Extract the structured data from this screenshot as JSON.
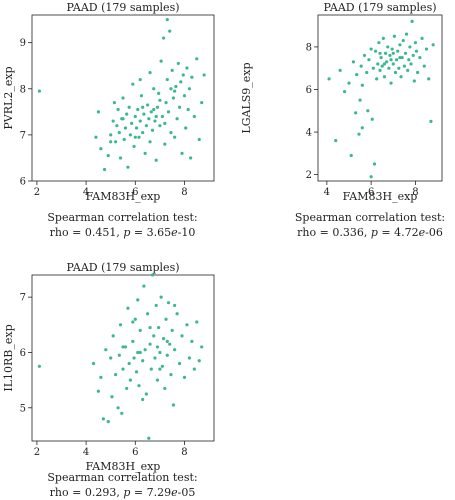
{
  "chart_data": [
    {
      "type": "scatter",
      "title": "PAAD (179 samples)",
      "xlabel": "FAM83H_exp",
      "ylabel": "PVRL2_exp",
      "xlim": [
        1.8,
        9.2
      ],
      "ylim": [
        6.0,
        9.6
      ],
      "xticks": [
        2,
        4,
        6,
        8
      ],
      "yticks": [
        6,
        7,
        8,
        9
      ],
      "point_color": "#3cb88c",
      "stat_title": "Spearman correlation test:",
      "stat_rho": "rho = 0.451,",
      "stat_p_label": "p",
      "stat_p_value": "= 3.65e-10",
      "stat_p_mantissa": "3.65",
      "stat_p_e": "e",
      "stat_p_exp": "-10",
      "points": [
        [
          2.1,
          7.95
        ],
        [
          4.4,
          6.95
        ],
        [
          4.6,
          6.7
        ],
        [
          4.75,
          6.25
        ],
        [
          4.5,
          7.5
        ],
        [
          4.9,
          6.55
        ],
        [
          5.0,
          7.0
        ],
        [
          5.1,
          7.3
        ],
        [
          5.2,
          6.85
        ],
        [
          5.25,
          7.2
        ],
        [
          5.3,
          7.55
        ],
        [
          5.35,
          7.05
        ],
        [
          5.4,
          6.5
        ],
        [
          5.45,
          7.35
        ],
        [
          5.5,
          7.8
        ],
        [
          5.55,
          6.9
        ],
        [
          5.6,
          7.15
        ],
        [
          5.65,
          7.45
        ],
        [
          5.7,
          6.3
        ],
        [
          5.75,
          7.6
        ],
        [
          5.8,
          7.0
        ],
        [
          5.85,
          7.25
        ],
        [
          5.9,
          8.1
        ],
        [
          5.95,
          6.75
        ],
        [
          6.0,
          7.4
        ],
        [
          6.05,
          7.15
        ],
        [
          6.1,
          7.55
        ],
        [
          6.15,
          6.95
        ],
        [
          6.2,
          7.3
        ],
        [
          6.25,
          7.85
        ],
        [
          6.3,
          7.05
        ],
        [
          6.35,
          7.45
        ],
        [
          6.4,
          6.6
        ],
        [
          6.45,
          7.2
        ],
        [
          6.5,
          7.65
        ],
        [
          6.55,
          7.35
        ],
        [
          6.6,
          6.85
        ],
        [
          6.65,
          7.5
        ],
        [
          6.7,
          7.1
        ],
        [
          6.75,
          8.0
        ],
        [
          6.8,
          7.3
        ],
        [
          6.85,
          6.45
        ],
        [
          6.9,
          7.6
        ],
        [
          6.95,
          7.9
        ],
        [
          7.0,
          7.2
        ],
        [
          7.05,
          8.6
        ],
        [
          7.1,
          7.4
        ],
        [
          7.15,
          9.1
        ],
        [
          7.2,
          6.8
        ],
        [
          7.25,
          7.7
        ],
        [
          7.3,
          8.2
        ],
        [
          7.35,
          7.5
        ],
        [
          7.4,
          9.25
        ],
        [
          7.45,
          7.05
        ],
        [
          7.5,
          8.4
        ],
        [
          7.55,
          7.8
        ],
        [
          7.6,
          6.95
        ],
        [
          7.65,
          8.05
        ],
        [
          7.7,
          7.35
        ],
        [
          7.75,
          8.55
        ],
        [
          7.8,
          7.6
        ],
        [
          7.85,
          8.15
        ],
        [
          7.9,
          6.6
        ],
        [
          7.95,
          8.3
        ],
        [
          8.0,
          7.85
        ],
        [
          8.05,
          7.15
        ],
        [
          8.1,
          8.45
        ],
        [
          8.15,
          7.55
        ],
        [
          8.2,
          8.0
        ],
        [
          8.25,
          6.5
        ],
        [
          8.3,
          8.25
        ],
        [
          8.4,
          7.4
        ],
        [
          8.5,
          8.65
        ],
        [
          8.6,
          6.9
        ],
        [
          8.7,
          7.7
        ],
        [
          8.8,
          8.3
        ],
        [
          7.3,
          9.5
        ],
        [
          6.6,
          8.35
        ],
        [
          6.2,
          8.2
        ],
        [
          5.5,
          7.35
        ],
        [
          5.0,
          6.85
        ],
        [
          5.15,
          7.7
        ],
        [
          6.85,
          7.4
        ],
        [
          7.0,
          7.75
        ],
        [
          7.6,
          7.95
        ],
        [
          6.0,
          6.95
        ],
        [
          6.3,
          7.6
        ],
        [
          7.2,
          7.25
        ],
        [
          7.45,
          8.0
        ],
        [
          6.75,
          7.55
        ]
      ]
    },
    {
      "type": "scatter",
      "title": "PAAD (179 samples)",
      "xlabel": "FAM83H_exp",
      "ylabel": "LGALS9_exp",
      "xlim": [
        3.6,
        9.2
      ],
      "ylim": [
        1.7,
        9.5
      ],
      "xticks": [
        4,
        6,
        8
      ],
      "yticks": [
        2,
        4,
        6,
        8
      ],
      "point_color": "#3cb88c",
      "stat_title": "Spearman correlation test:",
      "stat_rho": "rho = 0.336,",
      "stat_p_label": "p",
      "stat_p_value": "= 4.72e-06",
      "stat_p_mantissa": "4.72",
      "stat_p_e": "e",
      "stat_p_exp": "-06",
      "points": [
        [
          4.1,
          6.5
        ],
        [
          4.4,
          3.6
        ],
        [
          4.6,
          6.9
        ],
        [
          4.8,
          5.9
        ],
        [
          5.0,
          6.3
        ],
        [
          5.1,
          2.9
        ],
        [
          5.2,
          7.3
        ],
        [
          5.3,
          4.9
        ],
        [
          5.35,
          6.7
        ],
        [
          5.45,
          3.9
        ],
        [
          5.5,
          5.5
        ],
        [
          5.55,
          7.1
        ],
        [
          5.6,
          6.2
        ],
        [
          5.7,
          7.6
        ],
        [
          5.8,
          6.8
        ],
        [
          5.85,
          5.0
        ],
        [
          5.9,
          7.4
        ],
        [
          6.0,
          1.9
        ],
        [
          6.05,
          4.6
        ],
        [
          6.1,
          7.0
        ],
        [
          6.15,
          2.5
        ],
        [
          6.2,
          7.8
        ],
        [
          6.25,
          6.5
        ],
        [
          6.3,
          7.2
        ],
        [
          6.35,
          8.2
        ],
        [
          6.4,
          6.9
        ],
        [
          6.45,
          7.5
        ],
        [
          6.5,
          7.1
        ],
        [
          6.55,
          8.4
        ],
        [
          6.6,
          6.6
        ],
        [
          6.65,
          7.7
        ],
        [
          6.7,
          7.3
        ],
        [
          6.75,
          8.0
        ],
        [
          6.8,
          7.0
        ],
        [
          6.85,
          7.6
        ],
        [
          6.9,
          6.3
        ],
        [
          6.95,
          7.9
        ],
        [
          7.0,
          7.2
        ],
        [
          7.05,
          8.5
        ],
        [
          7.1,
          6.8
        ],
        [
          7.15,
          7.4
        ],
        [
          7.2,
          7.8
        ],
        [
          7.25,
          7.0
        ],
        [
          7.3,
          8.1
        ],
        [
          7.35,
          6.6
        ],
        [
          7.4,
          7.5
        ],
        [
          7.45,
          8.3
        ],
        [
          7.5,
          7.1
        ],
        [
          7.55,
          7.7
        ],
        [
          7.6,
          8.6
        ],
        [
          7.65,
          6.9
        ],
        [
          7.7,
          7.4
        ],
        [
          7.75,
          8.0
        ],
        [
          7.8,
          7.2
        ],
        [
          7.85,
          9.2
        ],
        [
          7.9,
          7.6
        ],
        [
          7.95,
          6.4
        ],
        [
          8.0,
          8.2
        ],
        [
          8.05,
          7.8
        ],
        [
          8.1,
          6.8
        ],
        [
          8.2,
          7.5
        ],
        [
          8.3,
          8.4
        ],
        [
          8.4,
          7.1
        ],
        [
          8.5,
          7.9
        ],
        [
          8.6,
          6.5
        ],
        [
          8.7,
          4.5
        ],
        [
          8.8,
          8.1
        ],
        [
          6.4,
          7.7
        ],
        [
          6.9,
          7.4
        ],
        [
          7.3,
          7.5
        ],
        [
          6.6,
          7.2
        ],
        [
          7.0,
          7.7
        ],
        [
          5.6,
          4.2
        ],
        [
          6.0,
          7.9
        ]
      ]
    },
    {
      "type": "scatter",
      "title": "PAAD (179 samples)",
      "xlabel": "FAM83H_exp",
      "ylabel": "IL10RB_exp",
      "xlim": [
        1.8,
        9.2
      ],
      "ylim": [
        4.4,
        7.4
      ],
      "xticks": [
        2,
        4,
        6,
        8
      ],
      "yticks": [
        5,
        6,
        7
      ],
      "point_color": "#3cb88c",
      "stat_title": "Spearman correlation test:",
      "stat_rho": "rho = 0.293,",
      "stat_p_label": "p",
      "stat_p_value": "= 7.29e-05",
      "stat_p_mantissa": "7.29",
      "stat_p_e": "e",
      "stat_p_exp": "-05",
      "points": [
        [
          2.1,
          5.75
        ],
        [
          4.3,
          5.8
        ],
        [
          4.5,
          5.3
        ],
        [
          4.6,
          5.55
        ],
        [
          4.7,
          4.8
        ],
        [
          4.8,
          6.05
        ],
        [
          4.9,
          4.75
        ],
        [
          5.0,
          5.9
        ],
        [
          5.05,
          5.2
        ],
        [
          5.1,
          6.3
        ],
        [
          5.2,
          5.6
        ],
        [
          5.3,
          5.0
        ],
        [
          5.35,
          5.95
        ],
        [
          5.4,
          6.5
        ],
        [
          5.45,
          4.9
        ],
        [
          5.5,
          5.7
        ],
        [
          5.6,
          6.1
        ],
        [
          5.65,
          5.35
        ],
        [
          5.7,
          6.8
        ],
        [
          5.75,
          5.8
        ],
        [
          5.8,
          5.5
        ],
        [
          5.9,
          6.2
        ],
        [
          5.95,
          5.9
        ],
        [
          6.0,
          6.6
        ],
        [
          6.05,
          5.65
        ],
        [
          6.1,
          6.0
        ],
        [
          6.15,
          5.4
        ],
        [
          6.2,
          6.4
        ],
        [
          6.3,
          5.85
        ],
        [
          6.35,
          7.2
        ],
        [
          6.4,
          6.05
        ],
        [
          6.45,
          5.25
        ],
        [
          6.5,
          6.7
        ],
        [
          6.55,
          4.45
        ],
        [
          6.6,
          6.15
        ],
        [
          6.65,
          5.7
        ],
        [
          6.7,
          7.4
        ],
        [
          6.75,
          6.3
        ],
        [
          6.8,
          5.9
        ],
        [
          6.85,
          6.85
        ],
        [
          6.9,
          5.5
        ],
        [
          6.95,
          6.45
        ],
        [
          7.0,
          6.0
        ],
        [
          7.05,
          7.0
        ],
        [
          7.1,
          5.75
        ],
        [
          7.15,
          6.25
        ],
        [
          7.2,
          5.35
        ],
        [
          7.25,
          6.6
        ],
        [
          7.3,
          5.95
        ],
        [
          7.35,
          6.9
        ],
        [
          7.4,
          6.15
        ],
        [
          7.45,
          5.6
        ],
        [
          7.5,
          6.4
        ],
        [
          7.55,
          5.05
        ],
        [
          7.6,
          6.05
        ],
        [
          7.7,
          6.7
        ],
        [
          7.8,
          5.8
        ],
        [
          7.9,
          6.3
        ],
        [
          8.0,
          5.55
        ],
        [
          8.1,
          6.5
        ],
        [
          8.2,
          5.9
        ],
        [
          8.3,
          6.2
        ],
        [
          8.4,
          5.7
        ],
        [
          8.5,
          6.55
        ],
        [
          8.6,
          5.85
        ],
        [
          8.7,
          6.1
        ],
        [
          6.3,
          5.15
        ],
        [
          5.9,
          6.55
        ],
        [
          6.6,
          6.45
        ],
        [
          7.0,
          5.7
        ],
        [
          6.2,
          6.0
        ],
        [
          7.3,
          6.2
        ],
        [
          5.5,
          6.1
        ],
        [
          6.9,
          6.1
        ],
        [
          7.6,
          6.85
        ],
        [
          6.1,
          6.95
        ]
      ]
    }
  ]
}
